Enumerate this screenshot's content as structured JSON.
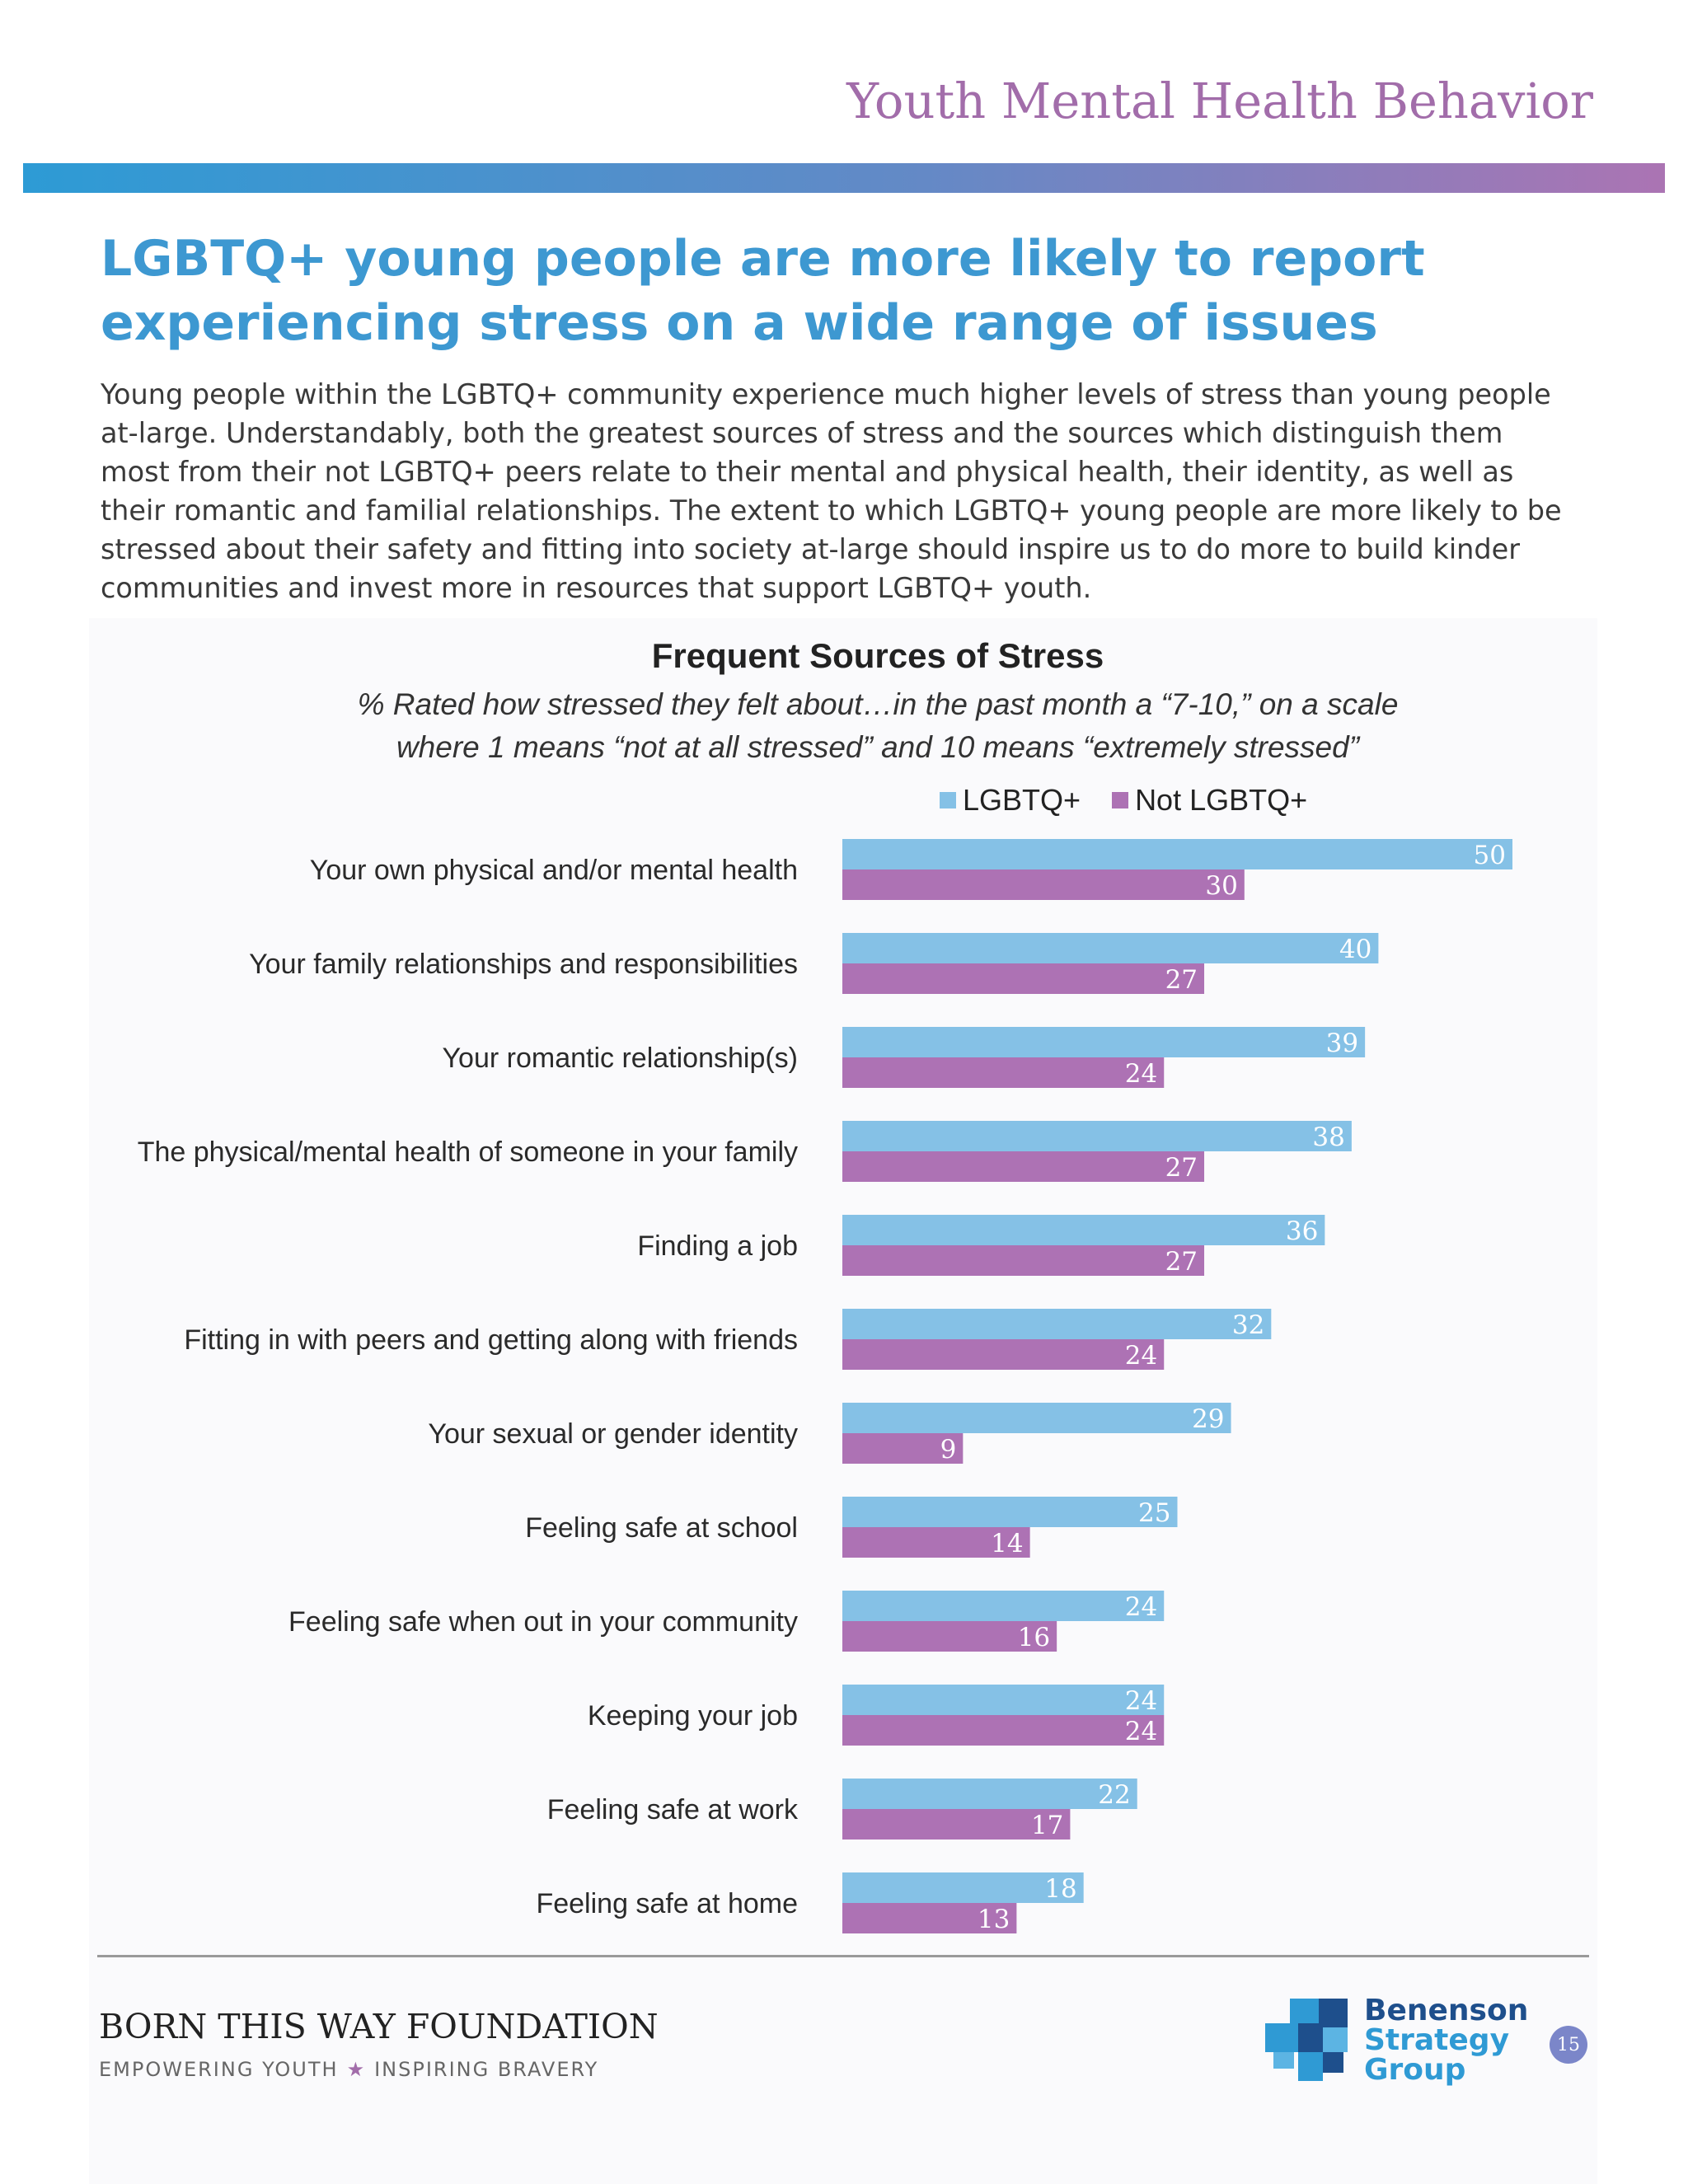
{
  "header": {
    "section_title": "Youth Mental Health Behavior"
  },
  "headline": "LGBTQ+ young people are more likely to report experiencing stress on a wide range of issues",
  "intro": "Young people within the LGBTQ+ community experience much higher levels of stress than young people at-large. Understandably, both the greatest sources of stress and the sources which distinguish them most from their not LGBTQ+ peers relate to their mental and physical health, their identity, as well as their romantic and familial relationships. The extent to which LGBTQ+ young people are more likely to be stressed about their safety and fitting into society at-large should inspire us to do more to build kinder communities and invest more in resources that support LGBTQ+ youth.",
  "chart_data": {
    "type": "bar",
    "orientation": "horizontal",
    "title": "Frequent Sources of Stress",
    "subtitle_line1": "% Rated how stressed they felt about…in the past month a “7-10,” on a scale",
    "subtitle_line2": "where 1 means “not at all stressed” and 10 means “extremely stressed”",
    "categories": [
      "Your own physical and/or mental health",
      "Your family relationships and responsibilities",
      "Your romantic relationship(s)",
      "The physical/mental health of someone in your family",
      "Finding a job",
      "Fitting in with peers and getting along with friends",
      "Your sexual or gender identity",
      "Feeling safe at school",
      "Feeling safe when out in your community",
      "Keeping your job",
      "Feeling safe at work",
      "Feeling safe at home"
    ],
    "series": [
      {
        "name": "LGBTQ+",
        "color": "#85c1e6",
        "values": [
          50,
          40,
          39,
          38,
          36,
          32,
          29,
          25,
          24,
          24,
          22,
          18
        ]
      },
      {
        "name": "Not LGBTQ+",
        "color": "#ad72b4",
        "values": [
          30,
          27,
          24,
          27,
          27,
          24,
          9,
          14,
          16,
          24,
          17,
          13
        ]
      }
    ],
    "xlim": [
      0,
      50
    ],
    "legend_position": "top",
    "grid": false,
    "data_labels": true
  },
  "footer": {
    "org_name": "BORN THIS WAY FOUNDATION",
    "tagline_left": "EMPOWERING YOUTH",
    "tagline_star": "★",
    "tagline_right": "INSPIRING BRAVERY",
    "partner_line1": "Benenson",
    "partner_line2": "Strategy",
    "partner_line3": "Group",
    "page_number": "15"
  }
}
